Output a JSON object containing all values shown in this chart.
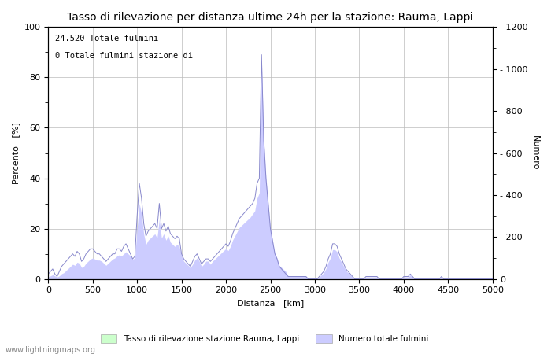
{
  "title": "Tasso di rilevazione per distanza ultime 24h per la stazione: Rauma, Lappi",
  "xlabel": "Distanza   [km]",
  "ylabel_left": "Percento   [%]",
  "ylabel_right": "Numero",
  "annotation_line1": "24.520 Totale fulmini",
  "annotation_line2": "0 Totale fulmini stazione di",
  "watermark": "www.lightningmaps.org",
  "legend_label1": "Tasso di rilevazione stazione Rauma, Lappi",
  "legend_label2": "Numero totale fulmini",
  "xlim": [
    0,
    5000
  ],
  "ylim_left": [
    0,
    100
  ],
  "ylim_right": [
    0,
    1200
  ],
  "xticks": [
    0,
    500,
    1000,
    1500,
    2000,
    2500,
    3000,
    3500,
    4000,
    4500,
    5000
  ],
  "yticks_left": [
    0,
    20,
    40,
    60,
    80,
    100
  ],
  "yticks_right": [
    0,
    200,
    400,
    600,
    800,
    1000,
    1200
  ],
  "line_color": "#8888cc",
  "fill_color_detection": "#ccffcc",
  "fill_color_count": "#ccccff",
  "background_color": "#ffffff",
  "grid_color": "#bbbbbb",
  "title_fontsize": 10,
  "label_fontsize": 8,
  "tick_fontsize": 8,
  "dist_km": [
    0,
    25,
    50,
    75,
    100,
    125,
    150,
    175,
    200,
    225,
    250,
    275,
    300,
    325,
    350,
    375,
    400,
    425,
    450,
    475,
    500,
    525,
    550,
    575,
    600,
    625,
    650,
    675,
    700,
    725,
    750,
    775,
    800,
    825,
    850,
    875,
    900,
    925,
    950,
    975,
    1000,
    1025,
    1050,
    1075,
    1100,
    1125,
    1150,
    1175,
    1200,
    1225,
    1250,
    1275,
    1300,
    1325,
    1350,
    1375,
    1400,
    1425,
    1450,
    1475,
    1500,
    1525,
    1550,
    1575,
    1600,
    1625,
    1650,
    1675,
    1700,
    1725,
    1750,
    1775,
    1800,
    1825,
    1850,
    1875,
    1900,
    1925,
    1950,
    1975,
    2000,
    2025,
    2050,
    2075,
    2100,
    2125,
    2150,
    2175,
    2200,
    2225,
    2250,
    2275,
    2300,
    2325,
    2350,
    2375,
    2400,
    2425,
    2450,
    2475,
    2500,
    2525,
    2550,
    2575,
    2600,
    2625,
    2650,
    2675,
    2700,
    2725,
    2750,
    2775,
    2800,
    2825,
    2850,
    2875,
    2900,
    2925,
    2950,
    2975,
    3000,
    3025,
    3050,
    3075,
    3100,
    3125,
    3150,
    3175,
    3200,
    3225,
    3250,
    3275,
    3300,
    3325,
    3350,
    3375,
    3400,
    3425,
    3450,
    3475,
    3500,
    3525,
    3550,
    3575,
    3600,
    3625,
    3650,
    3675,
    3700,
    3725,
    3750,
    3775,
    3800,
    3825,
    3850,
    3875,
    3900,
    3925,
    3950,
    3975,
    4000,
    4025,
    4050,
    4075,
    4100,
    4125,
    4150,
    4175,
    4200,
    4225,
    4250,
    4275,
    4300,
    4325,
    4350,
    4375,
    4400,
    4425,
    4450,
    4475,
    4500,
    4525,
    4550,
    4575,
    4600,
    4625,
    4650,
    4675,
    4700,
    4725,
    4750,
    4775,
    4800,
    4825,
    4850,
    4875,
    4900,
    4925,
    4950,
    4975,
    5000
  ],
  "percent_vals": [
    2,
    3,
    4,
    2,
    1,
    3,
    5,
    6,
    7,
    8,
    9,
    10,
    9,
    11,
    10,
    7,
    8,
    10,
    11,
    12,
    12,
    11,
    10,
    10,
    9,
    8,
    7,
    8,
    9,
    10,
    10,
    12,
    12,
    11,
    13,
    14,
    12,
    10,
    8,
    9,
    25,
    38,
    32,
    22,
    17,
    19,
    20,
    21,
    22,
    20,
    30,
    20,
    22,
    19,
    21,
    18,
    17,
    16,
    17,
    16,
    10,
    8,
    7,
    6,
    5,
    7,
    9,
    10,
    8,
    6,
    7,
    8,
    8,
    7,
    8,
    9,
    10,
    11,
    12,
    13,
    14,
    13,
    15,
    18,
    20,
    22,
    24,
    25,
    26,
    27,
    28,
    29,
    30,
    32,
    38,
    40,
    89,
    55,
    40,
    30,
    20,
    15,
    10,
    8,
    5,
    4,
    3,
    2,
    1,
    1,
    1,
    1,
    1,
    1,
    1,
    1,
    1,
    0,
    0,
    0,
    0,
    0,
    1,
    2,
    3,
    5,
    8,
    10,
    14,
    14,
    13,
    10,
    8,
    6,
    4,
    3,
    2,
    1,
    0,
    0,
    0,
    0,
    0,
    1,
    1,
    1,
    1,
    1,
    1,
    0,
    0,
    0,
    0,
    0,
    0,
    0,
    0,
    0,
    0,
    0,
    1,
    1,
    1,
    2,
    1,
    0,
    0,
    0,
    0,
    0,
    0,
    0,
    0,
    0,
    0,
    0,
    0,
    1,
    0,
    0,
    0,
    0,
    0,
    0,
    0,
    0,
    0,
    0,
    0,
    0,
    0,
    0,
    0,
    0,
    0,
    0,
    0,
    0,
    0,
    0,
    0
  ],
  "count_vals": [
    10,
    15,
    20,
    15,
    10,
    15,
    25,
    30,
    40,
    50,
    60,
    70,
    65,
    80,
    75,
    55,
    60,
    75,
    85,
    95,
    100,
    95,
    90,
    90,
    85,
    75,
    65,
    75,
    85,
    95,
    100,
    110,
    115,
    110,
    120,
    130,
    120,
    110,
    95,
    100,
    240,
    360,
    310,
    215,
    165,
    185,
    195,
    205,
    215,
    195,
    285,
    195,
    215,
    185,
    205,
    175,
    165,
    155,
    165,
    155,
    110,
    85,
    75,
    65,
    55,
    70,
    90,
    100,
    85,
    60,
    70,
    85,
    85,
    70,
    85,
    95,
    105,
    115,
    125,
    135,
    145,
    135,
    155,
    185,
    205,
    225,
    245,
    255,
    265,
    275,
    285,
    295,
    310,
    325,
    385,
    410,
    1050,
    670,
    490,
    365,
    245,
    185,
    125,
    100,
    65,
    55,
    45,
    35,
    15,
    15,
    15,
    15,
    15,
    15,
    15,
    15,
    15,
    5,
    5,
    5,
    5,
    5,
    10,
    20,
    30,
    50,
    80,
    100,
    140,
    140,
    130,
    100,
    80,
    60,
    40,
    30,
    20,
    10,
    5,
    5,
    5,
    5,
    5,
    10,
    10,
    10,
    10,
    10,
    10,
    5,
    5,
    5,
    5,
    5,
    5,
    5,
    5,
    5,
    5,
    5,
    10,
    10,
    10,
    20,
    10,
    5,
    5,
    5,
    5,
    5,
    5,
    5,
    5,
    5,
    5,
    5,
    5,
    10,
    5,
    5,
    5,
    5,
    5,
    5,
    5,
    5,
    5,
    5,
    5,
    5,
    5,
    5,
    5,
    5,
    5,
    5,
    5,
    5,
    5,
    5,
    5
  ]
}
